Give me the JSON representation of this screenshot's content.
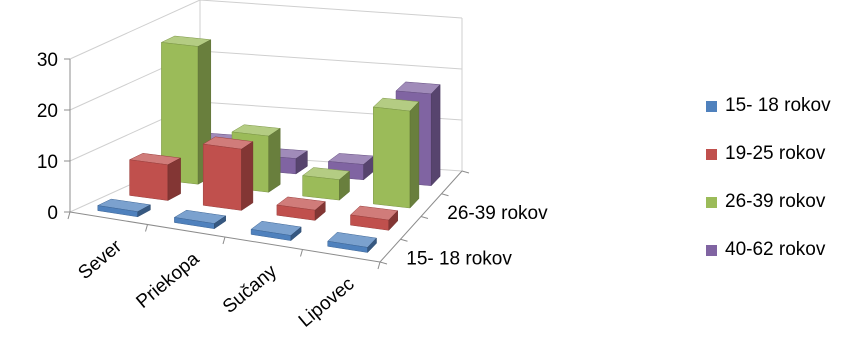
{
  "chart_data": {
    "type": "bar",
    "subtype": "3d-clustered-depth",
    "title": "",
    "categories": [
      "Sever",
      "Priekopa",
      "Sučany",
      "Lipovec"
    ],
    "depth_axis_labels": [
      "15- 18 rokov",
      "26-39 rokov"
    ],
    "ylim": [
      0,
      30
    ],
    "yticks": [
      "0",
      "10",
      "20",
      "30"
    ],
    "grid": true,
    "legend_position": "right",
    "series": [
      {
        "name": "15- 18 rokov",
        "color": "#4f81bd",
        "values": [
          1,
          1,
          1,
          1
        ]
      },
      {
        "name": "19-25 rokov",
        "color": "#c0504d",
        "values": [
          7,
          12,
          2,
          2
        ]
      },
      {
        "name": "26-39 rokov",
        "color": "#9bbb59",
        "values": [
          27,
          11,
          4,
          19
        ]
      },
      {
        "name": "40-62 rokov",
        "color": "#8064a2",
        "values": [
          5,
          3,
          3,
          18
        ]
      }
    ]
  }
}
